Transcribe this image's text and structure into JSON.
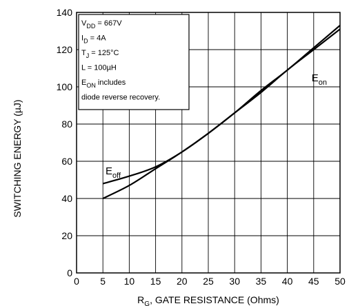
{
  "chart_data": {
    "type": "line",
    "title": "",
    "xlabel_main": "R",
    "xlabel_sub": "G",
    "xlabel_rest": ", GATE RESISTANCE (Ohms)",
    "ylabel": "SWITCHING ENERGY (µJ)",
    "xlim": [
      0,
      50
    ],
    "ylim": [
      0,
      140
    ],
    "x_ticks": [
      "0",
      "5",
      "10",
      "15",
      "20",
      "25",
      "30",
      "35",
      "40",
      "45",
      "50"
    ],
    "y_ticks": [
      "0",
      "20",
      "40",
      "60",
      "80",
      "100",
      "120",
      "140"
    ],
    "grid": true,
    "series": [
      {
        "name": "E_off",
        "label_main": "E",
        "label_sub": "off",
        "x": [
          5,
          10,
          15,
          20,
          25,
          30,
          35,
          40,
          45,
          50
        ],
        "y": [
          48,
          52,
          57,
          65,
          75,
          86,
          97,
          109,
          120,
          131
        ]
      },
      {
        "name": "E_on",
        "label_main": "E",
        "label_sub": "on",
        "x": [
          5,
          10,
          15,
          20,
          25,
          30,
          35,
          40,
          45,
          50
        ],
        "y": [
          40,
          47,
          56,
          65,
          75,
          86,
          98,
          109,
          121,
          133
        ]
      }
    ],
    "annotation_box": [
      {
        "main": "V",
        "sub": "DD",
        "rest": " = 667V"
      },
      {
        "main": "I",
        "sub": "D",
        "rest": " = 4A"
      },
      {
        "main": "T",
        "sub": "J",
        "rest": " = 125°C"
      },
      {
        "main": "L = 100µH",
        "sub": "",
        "rest": ""
      },
      {
        "main": "E",
        "sub": "ON",
        "rest": "  includes"
      },
      {
        "main": "diode  reverse  recovery.",
        "sub": "",
        "rest": ""
      }
    ]
  }
}
